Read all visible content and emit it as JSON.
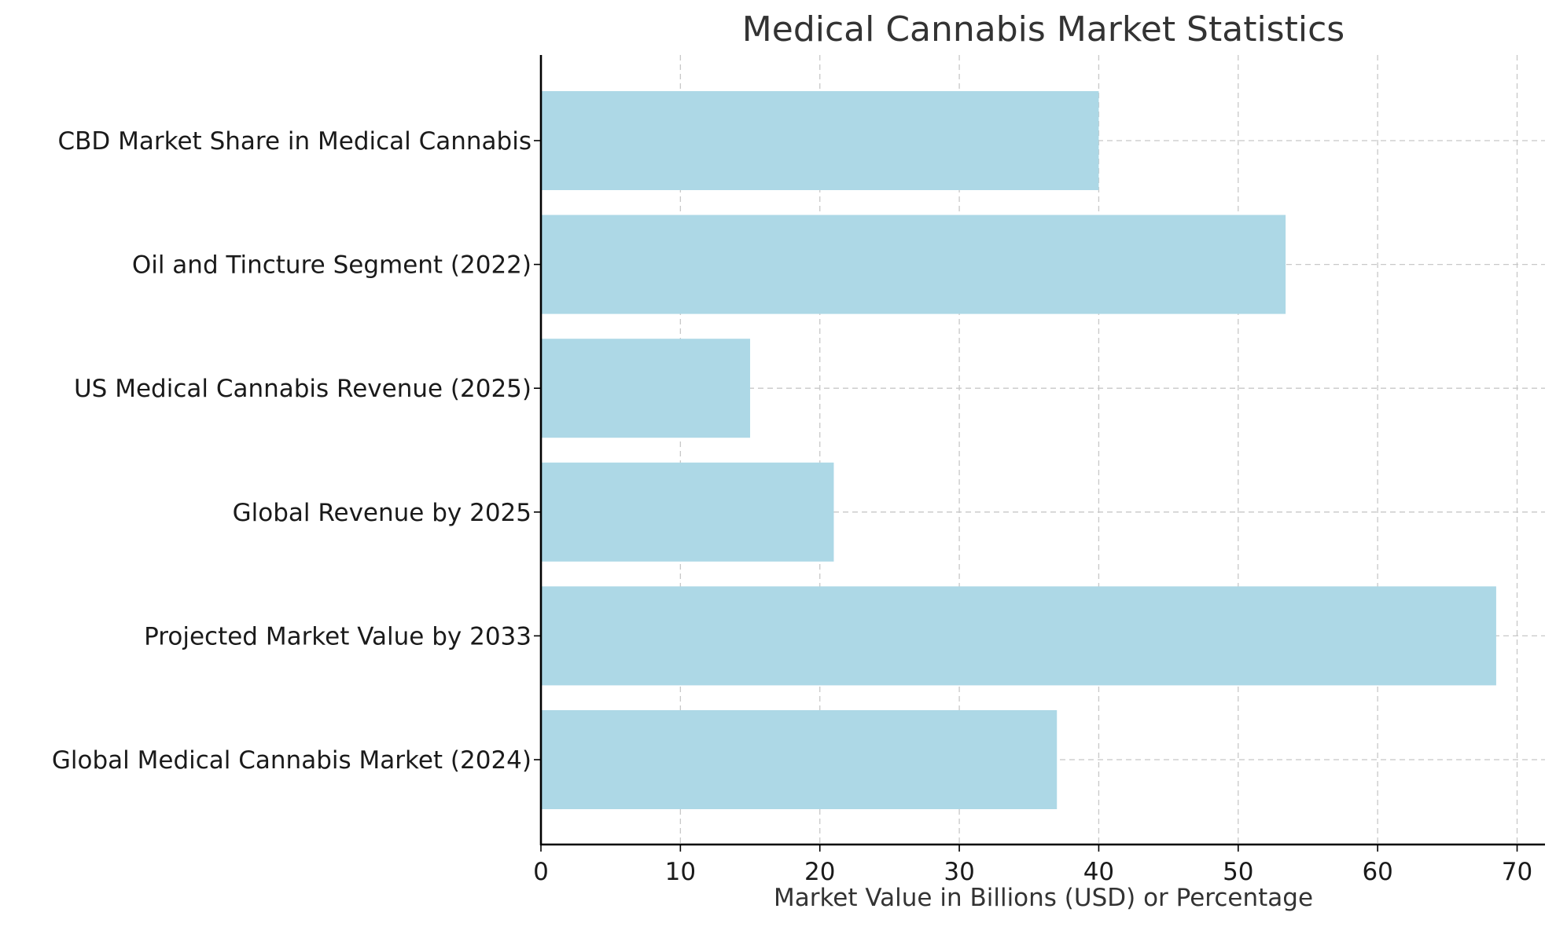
{
  "chart_data": {
    "type": "bar",
    "orientation": "horizontal",
    "title": "Medical Cannabis Market Statistics",
    "xlabel": "Market Value in Billions (USD) or Percentage",
    "ylabel": "",
    "xlim": [
      0,
      72
    ],
    "xticks": [
      0,
      10,
      20,
      30,
      40,
      50,
      60,
      70
    ],
    "grid": true,
    "bar_color": "#add8e6",
    "categories": [
      "CBD Market Share in Medical Cannabis",
      "Oil and Tincture Segment (2022)",
      "US Medical Cannabis Revenue (2025)",
      "Global Revenue by 2025",
      "Projected Market Value by 2033",
      "Global Medical Cannabis Market (2024)"
    ],
    "values": [
      40,
      53.4,
      15,
      21,
      68.5,
      37
    ]
  }
}
